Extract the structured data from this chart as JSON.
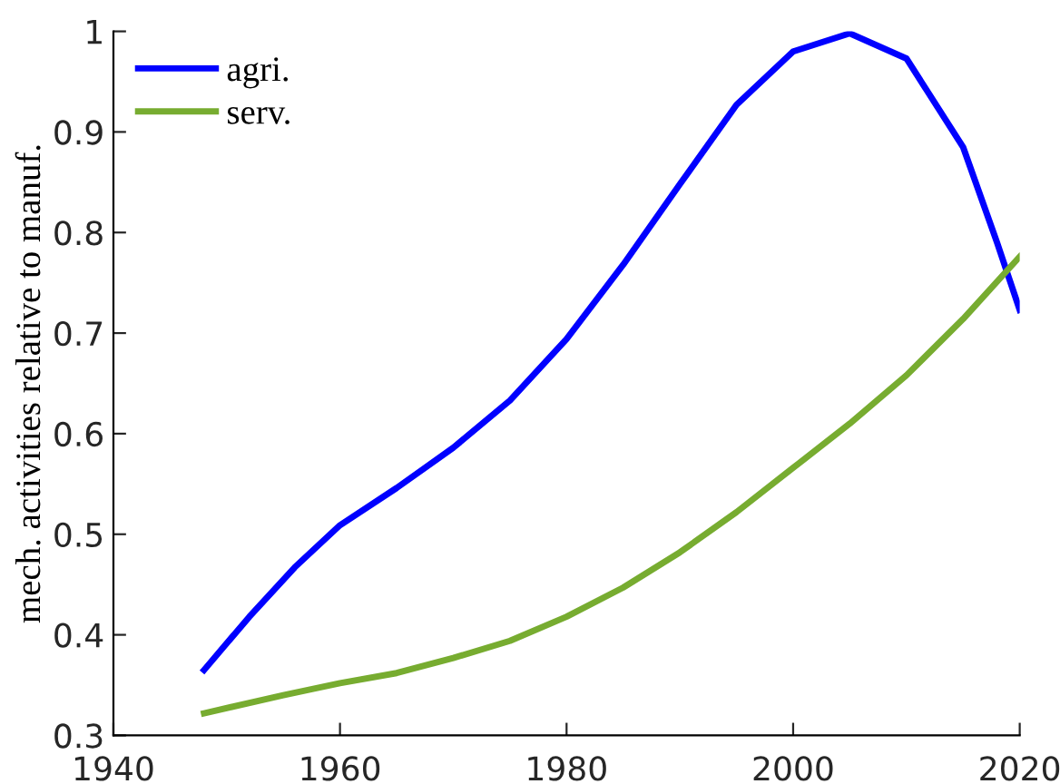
{
  "chart_data": {
    "type": "line",
    "ylabel": "mech. activities relative to manuf.",
    "xlim": [
      1940,
      2020
    ],
    "xticks": [
      1940,
      1960,
      1980,
      2000,
      2020
    ],
    "ylim": [
      0.3,
      1
    ],
    "yticks": [
      0.3,
      0.4,
      0.5,
      0.6,
      0.7,
      0.8,
      0.9,
      1
    ],
    "grid": false,
    "legend": "top left",
    "line_style": "solid",
    "marker": "none",
    "series": [
      {
        "name": "agri.",
        "color": "#0000ff",
        "x": [
          1948,
          1952,
          1956,
          1960,
          1965,
          1970,
          1975,
          1980,
          1985,
          1990,
          1995,
          2000,
          2005,
          2010,
          2015,
          2018,
          2020
        ],
        "values": [
          0.365,
          0.418,
          0.467,
          0.509,
          0.546,
          0.586,
          0.633,
          0.694,
          0.768,
          0.848,
          0.927,
          0.98,
          0.998,
          0.973,
          0.885,
          0.79,
          0.723
        ]
      },
      {
        "name": "serv.",
        "color": "#77ac30",
        "x": [
          1948,
          1955,
          1960,
          1965,
          1970,
          1975,
          1980,
          1985,
          1990,
          1995,
          2000,
          2005,
          2010,
          2015,
          2020
        ],
        "values": [
          0.322,
          0.34,
          0.352,
          0.362,
          0.377,
          0.394,
          0.418,
          0.447,
          0.482,
          0.522,
          0.566,
          0.61,
          0.658,
          0.714,
          0.776
        ]
      }
    ]
  }
}
